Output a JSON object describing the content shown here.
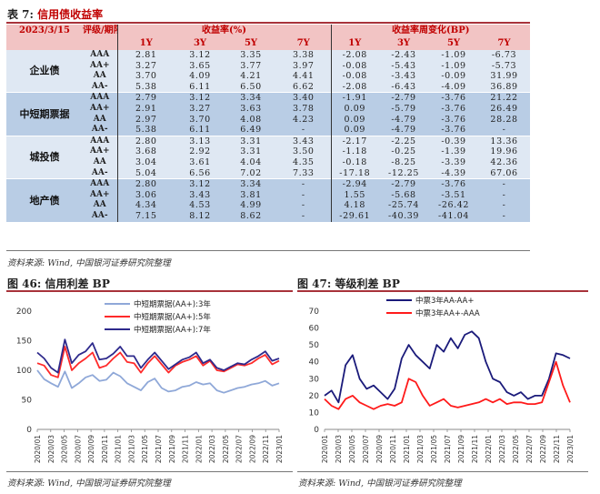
{
  "table": {
    "title_num": "表 7:",
    "title_text": "信用债收益率",
    "date": "2023/3/15",
    "rating_tenor_label": "评级/期限",
    "yield_header": "收益率(%)",
    "change_header": "收益率周变化(BP)",
    "tenors": [
      "1Y",
      "3Y",
      "5Y",
      "7Y"
    ],
    "groups": [
      {
        "name": "企业债",
        "rows": [
          {
            "rating": "AAA",
            "y": [
              "2.81",
              "3.12",
              "3.35",
              "3.38"
            ],
            "c": [
              "-2.08",
              "-2.43",
              "-1.09",
              "-6.73"
            ]
          },
          {
            "rating": "AA+",
            "y": [
              "3.27",
              "3.65",
              "3.77",
              "3.97"
            ],
            "c": [
              "-0.08",
              "-5.43",
              "-1.09",
              "-5.73"
            ]
          },
          {
            "rating": "AA",
            "y": [
              "3.70",
              "4.09",
              "4.21",
              "4.41"
            ],
            "c": [
              "-0.08",
              "-3.43",
              "-0.09",
              "31.99"
            ]
          },
          {
            "rating": "AA-",
            "y": [
              "5.38",
              "6.11",
              "6.50",
              "6.62"
            ],
            "c": [
              "-2.08",
              "-6.43",
              "-4.09",
              "36.89"
            ]
          }
        ]
      },
      {
        "name": "中短期票据",
        "rows": [
          {
            "rating": "AAA",
            "y": [
              "2.79",
              "3.12",
              "3.34",
              "3.40"
            ],
            "c": [
              "-1.91",
              "-2.79",
              "-3.76",
              "21.22"
            ]
          },
          {
            "rating": "AA+",
            "y": [
              "2.91",
              "3.27",
              "3.63",
              "3.78"
            ],
            "c": [
              "0.09",
              "-5.79",
              "-3.76",
              "26.49"
            ]
          },
          {
            "rating": "AA",
            "y": [
              "2.97",
              "3.70",
              "4.08",
              "4.23"
            ],
            "c": [
              "0.09",
              "-4.79",
              "-3.76",
              "28.28"
            ]
          },
          {
            "rating": "AA-",
            "y": [
              "5.38",
              "6.11",
              "6.49",
              "-"
            ],
            "c": [
              "0.09",
              "-4.79",
              "-3.76",
              "-"
            ]
          }
        ]
      },
      {
        "name": "城投债",
        "rows": [
          {
            "rating": "AAA",
            "y": [
              "2.80",
              "3.13",
              "3.31",
              "3.43"
            ],
            "c": [
              "-2.17",
              "-2.25",
              "-0.39",
              "13.36"
            ]
          },
          {
            "rating": "AA+",
            "y": [
              "3.68",
              "2.92",
              "3.31",
              "3.50"
            ],
            "c": [
              "-1.18",
              "-0.25",
              "-1.39",
              "19.96"
            ]
          },
          {
            "rating": "AA",
            "y": [
              "3.04",
              "3.61",
              "4.04",
              "4.35"
            ],
            "c": [
              "-0.18",
              "-8.25",
              "-3.39",
              "42.36"
            ]
          },
          {
            "rating": "AA-",
            "y": [
              "5.04",
              "6.56",
              "7.02",
              "7.33"
            ],
            "c": [
              "-17.18",
              "-12.25",
              "-4.39",
              "67.06"
            ]
          }
        ]
      },
      {
        "name": "地产债",
        "rows": [
          {
            "rating": "AAA",
            "y": [
              "2.80",
              "3.12",
              "3.34",
              "-"
            ],
            "c": [
              "-2.94",
              "-2.79",
              "-3.76",
              "-"
            ]
          },
          {
            "rating": "AA+",
            "y": [
              "3.06",
              "3.43",
              "3.81",
              "-"
            ],
            "c": [
              "1.55",
              "-5.68",
              "-3.51",
              "-"
            ]
          },
          {
            "rating": "AA",
            "y": [
              "4.34",
              "4.53",
              "4.99",
              "-"
            ],
            "c": [
              "4.18",
              "-25.74",
              "-26.42",
              "-"
            ]
          },
          {
            "rating": "AA-",
            "y": [
              "7.15",
              "8.12",
              "8.62",
              "-"
            ],
            "c": [
              "-29.61",
              "-40.39",
              "-41.04",
              "-"
            ]
          }
        ]
      }
    ],
    "source": "资料来源: Wind, 中国银河证券研究院整理"
  },
  "fig46": {
    "num": "图 46:",
    "title": "信用利差 BP",
    "source": "资料来源: Wind, 中国银河证券研究院整理"
  },
  "fig47": {
    "num": "图 47:",
    "title": "等级利差 BP",
    "source": "资料来源: Wind, 中国银河证券研究院整理"
  },
  "chart_data": [
    {
      "type": "line",
      "title": "信用利差 BP",
      "x_ticks": [
        "2020/01",
        "2020/03",
        "2020/05",
        "2020/07",
        "2020/09",
        "2020/11",
        "2021/01",
        "2021/03",
        "2021/05",
        "2021/07",
        "2021/09",
        "2021/11",
        "2022/01",
        "2022/03",
        "2022/05",
        "2022/07",
        "2022/09",
        "2022/11",
        "2023/01"
      ],
      "ylim": [
        0,
        200
      ],
      "y_ticks": [
        0,
        50,
        100,
        150,
        200
      ],
      "legend_position": "top",
      "series": [
        {
          "name": "中短期票据(AA+):3年",
          "color": "#8fa8d8",
          "values": [
            100,
            85,
            78,
            72,
            98,
            70,
            78,
            88,
            92,
            82,
            84,
            96,
            90,
            78,
            72,
            66,
            80,
            86,
            70,
            64,
            66,
            72,
            74,
            80,
            76,
            78,
            66,
            62,
            66,
            70,
            72,
            76,
            78,
            82,
            74,
            78
          ]
        },
        {
          "name": "中短期票据(AA+):5年",
          "color": "#ff2a2a",
          "values": [
            112,
            108,
            92,
            88,
            140,
            100,
            112,
            120,
            130,
            104,
            108,
            120,
            130,
            114,
            112,
            96,
            112,
            124,
            110,
            96,
            108,
            114,
            118,
            124,
            108,
            116,
            100,
            98,
            104,
            110,
            108,
            112,
            120,
            126,
            110,
            116
          ]
        },
        {
          "name": "中短期票据(AA+):7年",
          "color": "#2e2a8c",
          "values": [
            130,
            120,
            104,
            96,
            152,
            112,
            126,
            132,
            146,
            118,
            120,
            128,
            140,
            124,
            124,
            104,
            118,
            130,
            116,
            102,
            110,
            118,
            122,
            130,
            112,
            118,
            104,
            100,
            106,
            112,
            110,
            118,
            124,
            132,
            116,
            120
          ]
        }
      ]
    },
    {
      "type": "line",
      "title": "等级利差 BP",
      "x_ticks": [
        "2020/01",
        "2020/03",
        "2020/05",
        "2020/07",
        "2020/09",
        "2020/11",
        "2021/01",
        "2021/03",
        "2021/05",
        "2021/07",
        "2021/09",
        "2021/11",
        "2022/01",
        "2022/03",
        "2022/05",
        "2022/07",
        "2022/09",
        "2022/11",
        "2023/01"
      ],
      "ylim": [
        0,
        70
      ],
      "y_ticks": [
        0,
        10,
        20,
        30,
        40,
        50,
        60,
        70
      ],
      "legend_position": "top",
      "series": [
        {
          "name": "中票3年AA-AA+",
          "color": "#1a1a7a",
          "values": [
            20,
            23,
            16,
            38,
            44,
            30,
            24,
            26,
            22,
            18,
            24,
            42,
            50,
            44,
            40,
            36,
            50,
            46,
            54,
            48,
            56,
            58,
            54,
            40,
            30,
            28,
            22,
            20,
            22,
            18,
            20,
            20,
            30,
            45,
            44,
            42
          ]
        },
        {
          "name": "中票3年AA+-AAA",
          "color": "#ff1a1a",
          "values": [
            18,
            14,
            12,
            18,
            20,
            16,
            14,
            12,
            14,
            15,
            14,
            16,
            30,
            28,
            20,
            14,
            16,
            18,
            14,
            13,
            14,
            15,
            16,
            18,
            16,
            18,
            15,
            16,
            16,
            15,
            15,
            16,
            28,
            40,
            26,
            16
          ]
        }
      ]
    }
  ]
}
